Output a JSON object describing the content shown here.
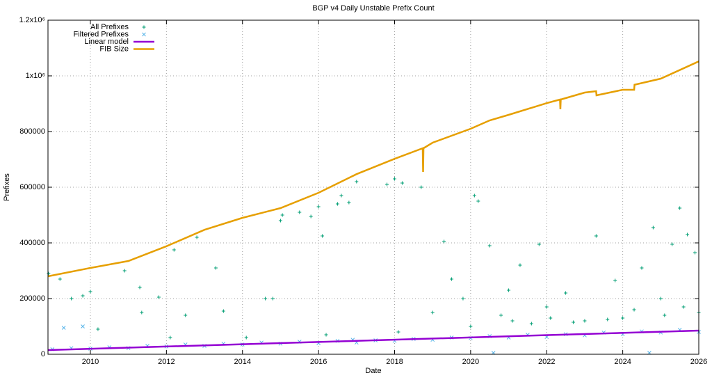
{
  "chart_data": {
    "type": "scatter",
    "title": "BGP v4 Daily Unstable Prefix Count",
    "x_label": "Date",
    "y_label": "Prefixes",
    "xlim": [
      2008.885,
      2026
    ],
    "xticks": [
      2010,
      2012,
      2014,
      2016,
      2018,
      2020,
      2022,
      2024,
      2026
    ],
    "ylim": [
      0,
      1200000
    ],
    "yticks": [
      0,
      200000,
      400000,
      600000,
      800000,
      {
        "value": 1000000,
        "label": "1x10⁶"
      },
      {
        "value": 1200000,
        "label": "1.2x10⁶"
      }
    ],
    "grid": true,
    "legend": "top-left",
    "series": [
      {
        "name": "All Prefixes",
        "type": "scatter",
        "marker": "+",
        "color": "#009e73",
        "x": [
          2008.9,
          2009.2,
          2009.5,
          2009.8,
          2010,
          2010.9,
          2011.3,
          2011.35,
          2011.8,
          2012.2,
          2012.5,
          2012.8,
          2013.3,
          2013.5,
          2014.6,
          2014.8,
          2015,
          2015.05,
          2015.5,
          2015.8,
          2016,
          2016.1,
          2016.5,
          2016.6,
          2016.8,
          2017,
          2017.8,
          2018,
          2018.2,
          2018.7,
          2019.3,
          2019.5,
          2019.8,
          2020.1,
          2020.2,
          2020.5,
          2021,
          2021.3,
          2021.8,
          2022,
          2022.5,
          2023.3,
          2023.8,
          2024.5,
          2024.8,
          2025,
          2025.3,
          2025.5,
          2025.7,
          2025.9,
          2021.1,
          2022.1,
          2023,
          2024,
          2025.1,
          2026,
          2010.2,
          2012.1,
          2014.1,
          2016.2,
          2018.1,
          2019,
          2020,
          2020.8,
          2021.6,
          2022.7,
          2023.6,
          2024.3,
          2025.6
        ],
        "values": [
          290000,
          270000,
          200000,
          210000,
          225000,
          300000,
          240000,
          150000,
          205000,
          375000,
          140000,
          420000,
          310000,
          155000,
          200000,
          200000,
          480000,
          500000,
          510000,
          495000,
          530000,
          425000,
          540000,
          570000,
          545000,
          620000,
          610000,
          630000,
          615000,
          600000,
          405000,
          270000,
          200000,
          570000,
          550000,
          390000,
          230000,
          320000,
          395000,
          170000,
          220000,
          425000,
          265000,
          310000,
          455000,
          200000,
          395000,
          525000,
          430000,
          365000,
          120000,
          130000,
          120000,
          130000,
          140000,
          150000,
          90000,
          60000,
          60000,
          70000,
          80000,
          150000,
          100000,
          140000,
          110000,
          115000,
          125000,
          160000,
          170000
        ]
      },
      {
        "name": "Filtered Prefixes",
        "type": "scatter",
        "marker": "x",
        "color": "#56b4e9",
        "x": [
          2009,
          2009.3,
          2009.5,
          2009.8,
          2010,
          2010.5,
          2011,
          2011.5,
          2012,
          2012.5,
          2013,
          2013.5,
          2014,
          2014.5,
          2015,
          2015.5,
          2016,
          2016.5,
          2016.9,
          2017,
          2017.5,
          2018,
          2018.5,
          2019,
          2019.5,
          2020,
          2020.5,
          2021,
          2021.5,
          2022,
          2022.5,
          2023,
          2023.5,
          2024,
          2024.5,
          2025,
          2025.5,
          2026,
          2020.6,
          2024.7
        ],
        "values": [
          18000,
          95000,
          22000,
          100000,
          20000,
          25000,
          22000,
          30000,
          28000,
          35000,
          30000,
          38000,
          35000,
          42000,
          38000,
          45000,
          40000,
          48000,
          52000,
          42000,
          50000,
          48000,
          55000,
          52000,
          60000,
          58000,
          65000,
          60000,
          70000,
          62000,
          72000,
          68000,
          78000,
          72000,
          82000,
          78000,
          88000,
          80000,
          5000,
          5000
        ]
      },
      {
        "name": "Linear model",
        "type": "line",
        "color": "#9400d3",
        "x": [
          2008.885,
          2026
        ],
        "values": [
          15000,
          85000
        ]
      },
      {
        "name": "FIB Size",
        "type": "line",
        "color": "#e69f00",
        "x": [
          2008.885,
          2010,
          2011,
          2012,
          2013,
          2014,
          2015,
          2016,
          2017,
          2018,
          2018.74,
          2018.75,
          2018.76,
          2019,
          2020,
          2020.5,
          2021,
          2022,
          2022.35,
          2022.36,
          2022.37,
          2023,
          2023.3,
          2023.31,
          2024,
          2024.3,
          2024.31,
          2025,
          2026
        ],
        "values": [
          280000,
          310000,
          335000,
          388000,
          447000,
          490000,
          525000,
          580000,
          647000,
          702000,
          740000,
          655000,
          740000,
          760000,
          810000,
          840000,
          860000,
          902000,
          915000,
          880000,
          915000,
          940000,
          945000,
          930000,
          950000,
          950000,
          968000,
          990000,
          1052000
        ]
      }
    ]
  }
}
